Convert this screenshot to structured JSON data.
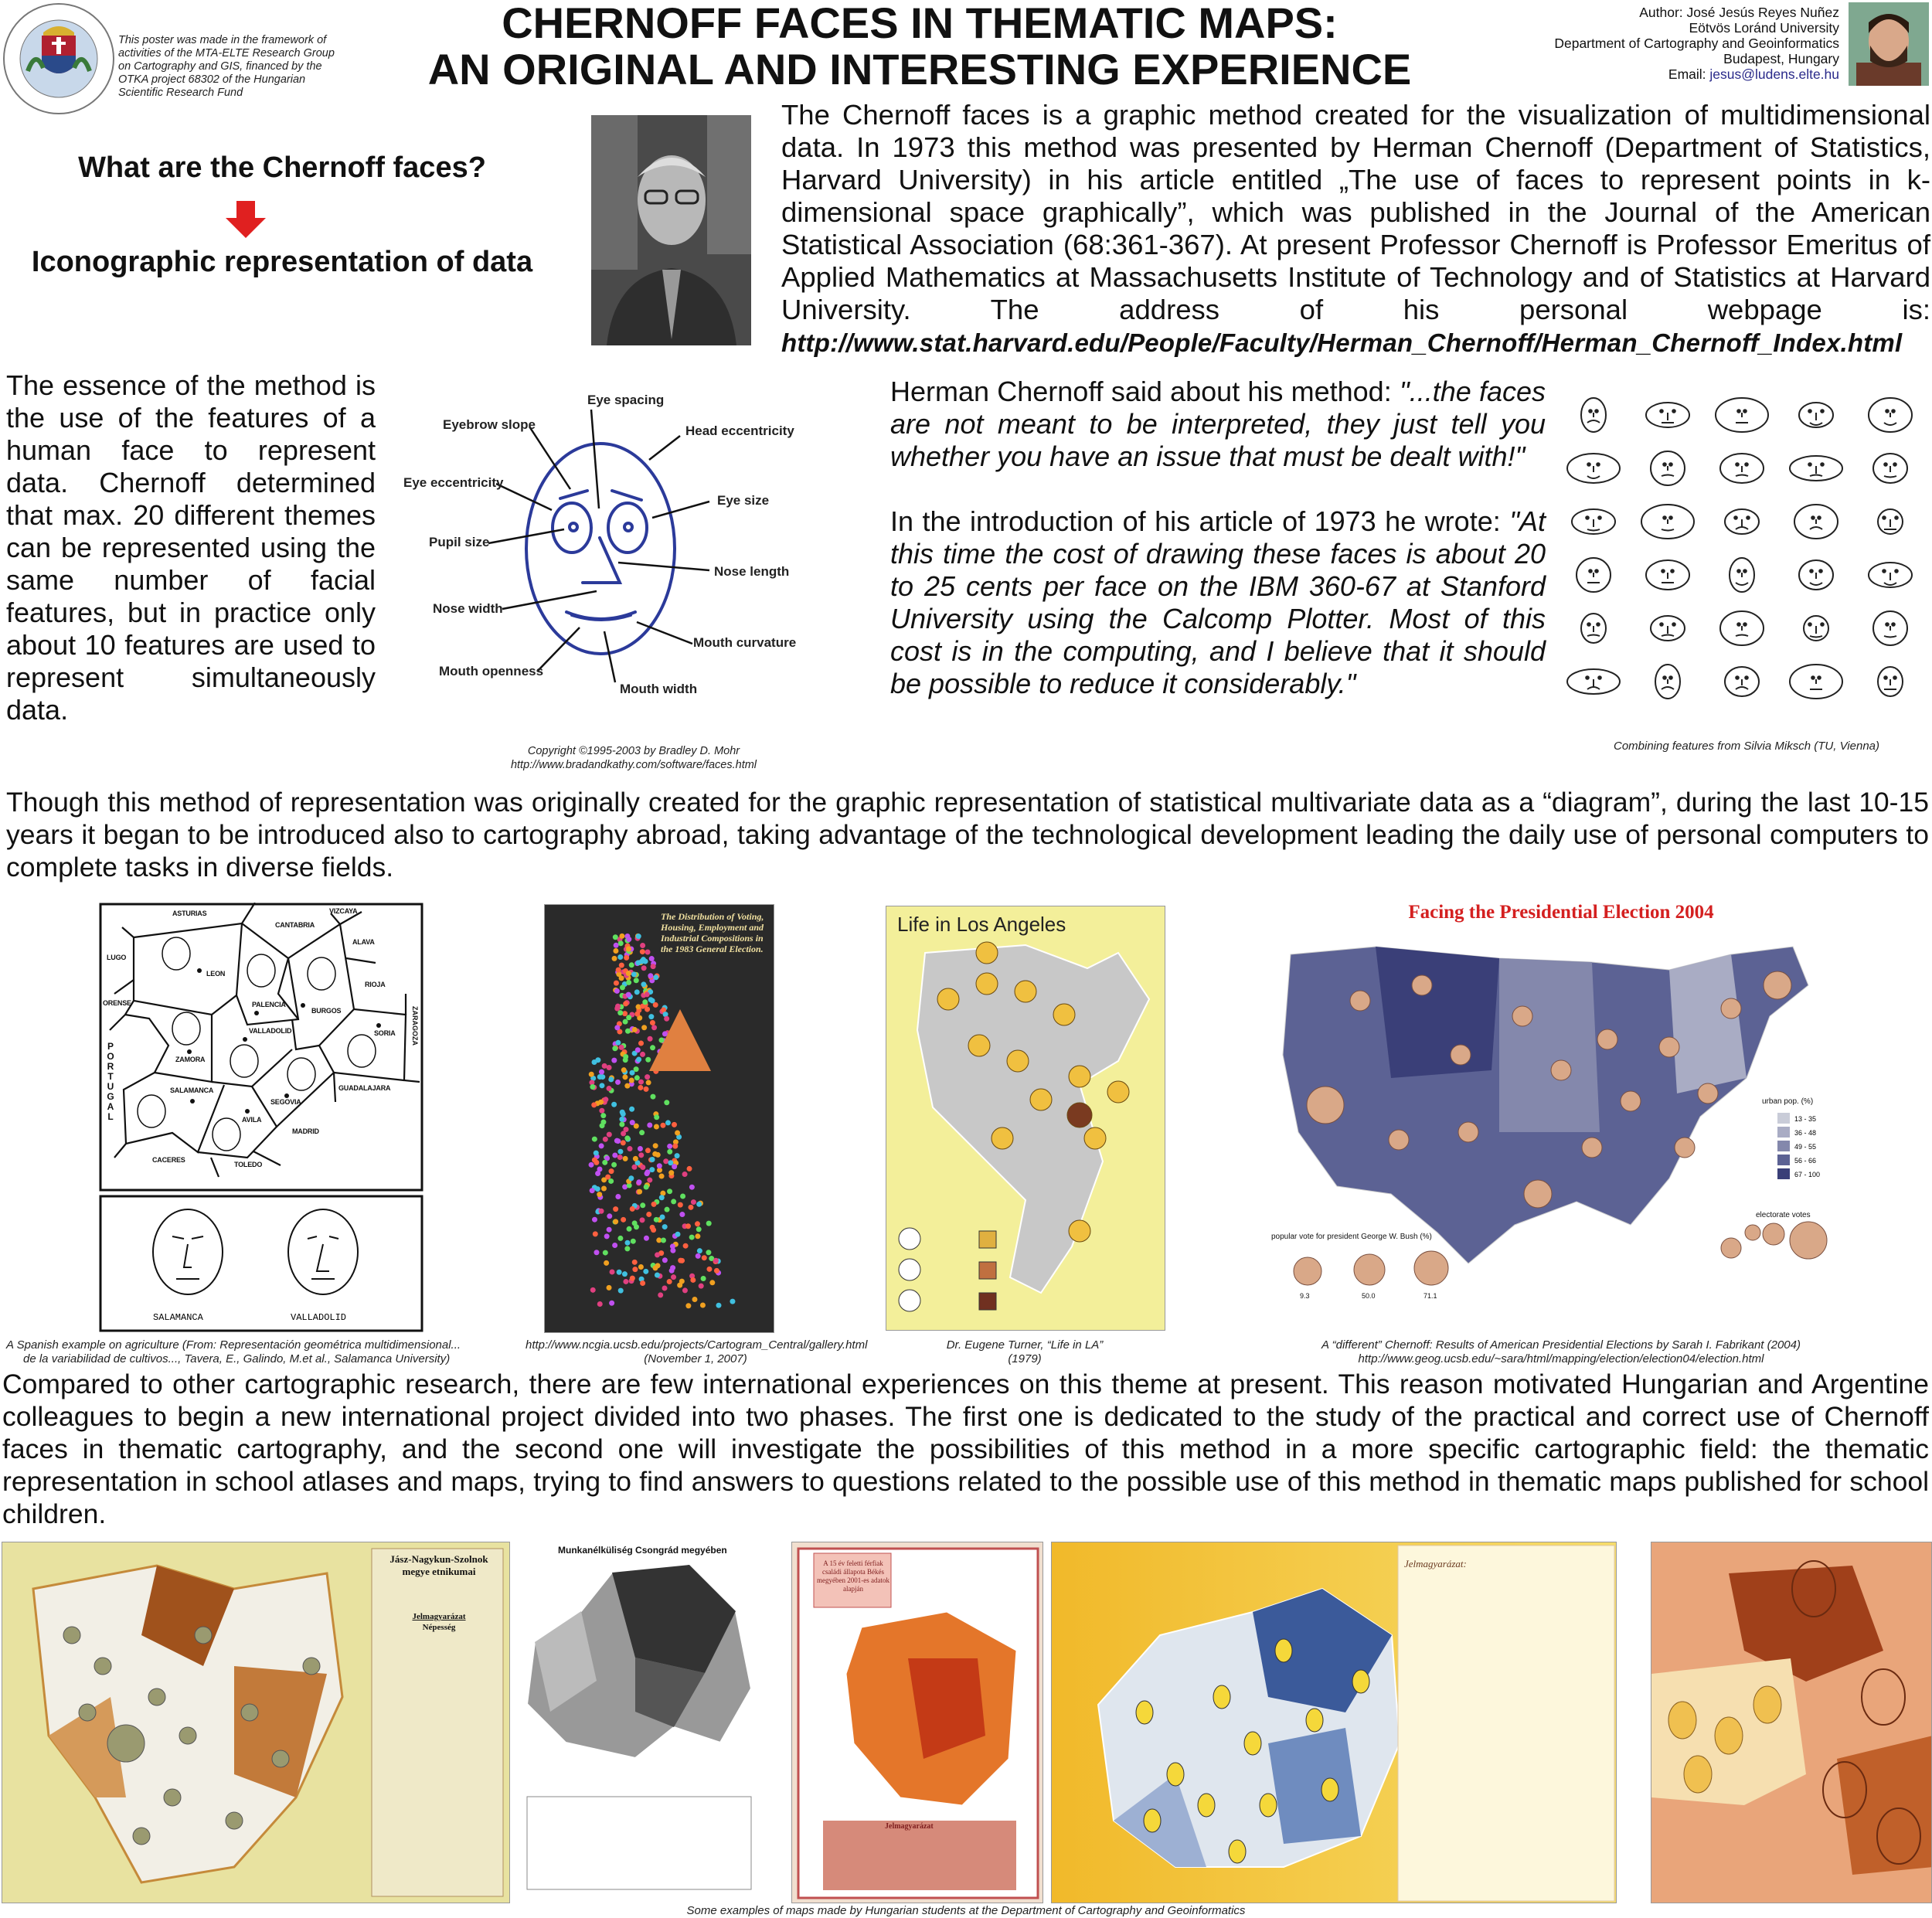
{
  "header": {
    "logo_text": "UNIVERSITAS BUDAPESTINENSIS DE ROLANDO EÖTVÖS NOMINATA 1635",
    "funding_note": "This poster was made in the framework of activities of the MTA-ELTE Research Group on Cartography and GIS, financed by the OTKA project 68302 of the Hungarian Scientific Research Fund",
    "title_line1": "CHERNOFF FACES IN THEMATIC MAPS:",
    "title_line2": "AN ORIGINAL AND INTERESTING EXPERIENCE",
    "author": {
      "name": "Author: José Jesús Reyes Nuñez",
      "university": "Eötvös Loránd University",
      "department": "Department of Cartography and Geoinformatics",
      "city": "Budapest, Hungary",
      "email_label": "Email: ",
      "email": "jesus@ludens.elte.hu"
    }
  },
  "intro": {
    "question": "What are the Chernoff faces?",
    "answer": "Iconographic representation of data",
    "arrow_color": "#e02020",
    "paragraph": "The Chernoff faces is a graphic method created for the visualization of multidimensional data. In 1973 this method was presented by  Herman Chernoff (Department of Statistics, Harvard University) in his article entitled „The use of faces to represent points in k-dimensional space graphically”, which was published in the Journal of the American Statistical Association (68:361-367). At present Professor Chernoff is Professor Emeritus of Applied Mathematics at Massachusetts Institute of Technology and of Statistics at Harvard University. The address of his personal webpage is:",
    "url": "http://www.stat.harvard.edu/People/Faculty/Herman_Chernoff/Herman_Chernoff_Index.html"
  },
  "essence": {
    "paragraph": "The essence of the method is the use of the features of a human face to represent data. Chernoff determined that max. 20 different themes can be represented using the same number of facial features, but in practice only about 10 features are used to represent simultaneously data."
  },
  "face_diagram": {
    "face_color": "#2b3a9a",
    "labels": {
      "eye_spacing": "Eye spacing",
      "eyebrow_slope": "Eyebrow slope",
      "head_eccentricity": "Head eccentricity",
      "eye_eccentricity": "Eye eccentricity",
      "eye_size": "Eye size",
      "pupil_size": "Pupil size",
      "nose_length": "Nose length",
      "nose_width": "Nose width",
      "mouth_curvature": "Mouth curvature",
      "mouth_openness": "Mouth openness",
      "mouth_width": "Mouth width"
    },
    "copyright": "Copyright ©1995-2003 by Bradley D. Mohr",
    "url": "http://www.bradandkathy.com/software/faces.html"
  },
  "quotes": {
    "quote1_intro": "Herman Chernoff said about his method: ",
    "quote1": "\"...the faces are not meant to be interpreted, they just tell you whether you have an issue that must be dealt with!\"",
    "quote2_intro": "In the introduction of his article of 1973 he wrote: ",
    "quote2": "\"At this time the cost of drawing these faces is about 20 to 25 cents per face on the IBM 360-67 at Stanford University using the Calcomp Plotter. Most of this cost is in the computing, and I believe that it should be possible to reduce it considerably.\""
  },
  "faces_grid": {
    "caption": "Combining features from Silvia Miksch (TU, Vienna)"
  },
  "history": {
    "paragraph": "Though this method of representation was originally created for the graphic representation of statistical multivariate data as a “diagram”, during the last 10-15 years it began to be introduced also to cartography abroad, taking advantage of the technological development leading the daily use of personal computers to complete tasks in diverse fields."
  },
  "examples": [
    {
      "caption_line1": "A Spanish example on agriculture (From: Representación geométrica multidimensional...",
      "caption_line2": "de la variabilidad de cultivos..., Tavera, E., Galindo, M.et al., Salamanca University)",
      "labels": [
        "ASTURIAS",
        "CANTABRIA",
        "VIZCAYA",
        "ALAVA",
        "LUGO",
        "LEON",
        "RIOJA",
        "ORENSE",
        "PALENCIA",
        "BURGOS",
        "SORIA",
        "VALLADOLID",
        "ZAMORA",
        "SEGOVIA",
        "SALAMANCA",
        "AVILA",
        "GUADALAJARA",
        "MADRID",
        "CACERES",
        "TOLEDO",
        "PORTUGAL",
        "ZARAGOZA"
      ],
      "face_labels": [
        "SALAMANCA",
        "VALLADOLID"
      ]
    },
    {
      "caption_line1": "http://www.ncgia.ucsb.edu/projects/Cartogram_Central/gallery.html",
      "caption_line2": "(November 1, 2007)",
      "map_title": "The Distribution of Voting, Housing, Employment and Industrial Compositions in the 1983 General Election."
    },
    {
      "caption_line1": "Dr. Eugene Turner, “Life in LA”",
      "caption_line2": "(1979)",
      "map_title": "Life in Los Angeles"
    },
    {
      "caption_line1": "A “different” Chernoff: Results of American Presidential Elections by Sarah I. Fabrikant (2004)",
      "caption_line2": "http://www.geog.ucsb.edu/~sara/html/mapping/election/election04/election.html",
      "map_title": "Facing the Presidential Election 2004",
      "legend_title": "urban pop. (%)",
      "legend_items": [
        "13 - 35",
        "36 - 48",
        "49 - 55",
        "56 - 66",
        "67 - 100"
      ],
      "legend_colors": [
        "#c9ccd8",
        "#a9acc4",
        "#8488ac",
        "#5c6294",
        "#3a3f78"
      ],
      "electorate_label": "electorate votes",
      "popular_vote_label": "popular vote for president George W. Bush (%)",
      "popular_vote_values": [
        "9.3",
        "50.0",
        "71.1"
      ]
    }
  ],
  "project": {
    "paragraph": "Compared to other cartographic research, there are few international experiences on this theme at present. This reason motivated Hungarian and Argentine colleagues to begin a new international project divided into two phases. The first one is dedicated to the study of the practical and correct use of Chernoff faces in thematic cartography, and the second one will investigate the possibilities of this method in a more specific cartographic field: the thematic representation in school atlases and maps, trying to find answers to questions related to the possible use of this method in thematic maps published for school children."
  },
  "student_maps": {
    "map1_title": "Jász-Nagykun-Szolnok megye etnikumai",
    "map1_legend": "Jelmagyarázat",
    "map1_legend_sub": "Népesség",
    "map2_title": "Munkanélküliség Csongrád megyében",
    "map3_title": "A 15 év feletti férfiak családi állapota Békés megyében 2001-es adatok alapján",
    "map3_legend": "Jelmagyarázat",
    "map4_legend": "Jelmagyarázat:",
    "caption": "Some examples of maps made by Hungarian students at the Department of Cartography and Geoinformatics"
  }
}
